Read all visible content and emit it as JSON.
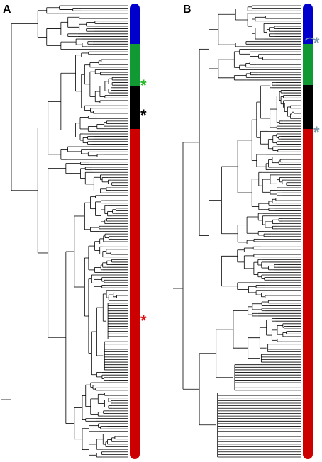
{
  "panels": [
    {
      "label": "A",
      "clusters": [
        "#0000cc",
        "#119933",
        "#000000",
        "#cc0000"
      ],
      "markers": [
        {
          "symbol": "*",
          "color": "#22bb22"
        },
        {
          "symbol": "*",
          "color": "#000000"
        },
        {
          "symbol": "*",
          "color": "#dd1111"
        }
      ]
    },
    {
      "label": "B",
      "clusters": [
        "#0000cc",
        "#119933",
        "#000000",
        "#cc0000"
      ],
      "markers": [
        {
          "symbol": "*",
          "color": "#7799aa"
        },
        {
          "symbol": "*",
          "color": "#7799aa"
        }
      ]
    }
  ]
}
